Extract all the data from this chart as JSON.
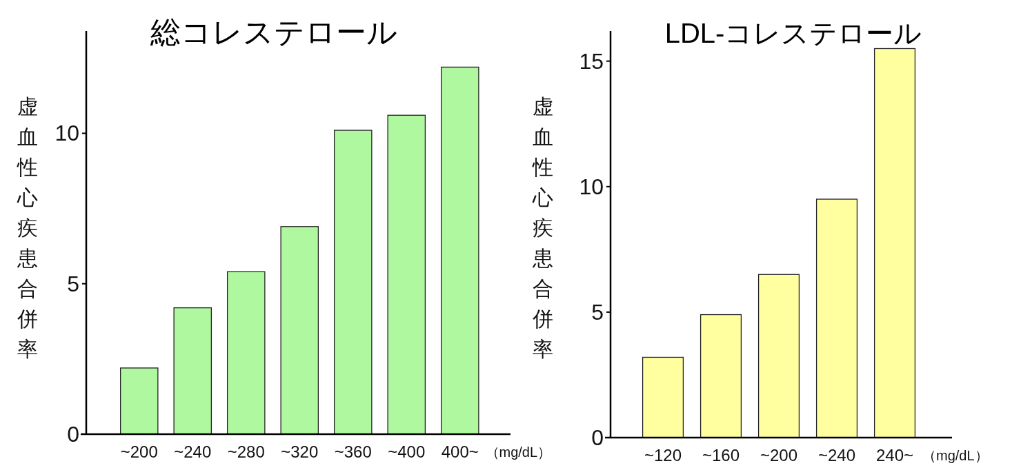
{
  "chart_data": [
    {
      "type": "bar",
      "title": "総コレステロール",
      "ylabel": "虚血性心疾患合併率",
      "xlabel": "（mg/dL）",
      "categories": [
        "~200",
        "~240",
        "~280",
        "~320",
        "~360",
        "~400",
        "400~"
      ],
      "values": [
        2.2,
        4.2,
        5.4,
        6.9,
        10.1,
        10.6,
        12.2
      ],
      "color": "#b0f8a0",
      "ylim": [
        0,
        13.4
      ],
      "yticks": [
        0,
        5,
        10
      ],
      "grid": false
    },
    {
      "type": "bar",
      "title": "LDL-コレステロール",
      "ylabel": "虚血性心疾患合併率",
      "xlabel": "（mg/dL）",
      "categories": [
        "~120",
        "~160",
        "~200",
        "~240",
        "240~"
      ],
      "values": [
        3.2,
        4.9,
        6.5,
        9.5,
        15.5
      ],
      "color": "#ffffa0",
      "ylim": [
        0,
        16.2
      ],
      "yticks": [
        0,
        5,
        10,
        15
      ],
      "grid": false
    }
  ]
}
